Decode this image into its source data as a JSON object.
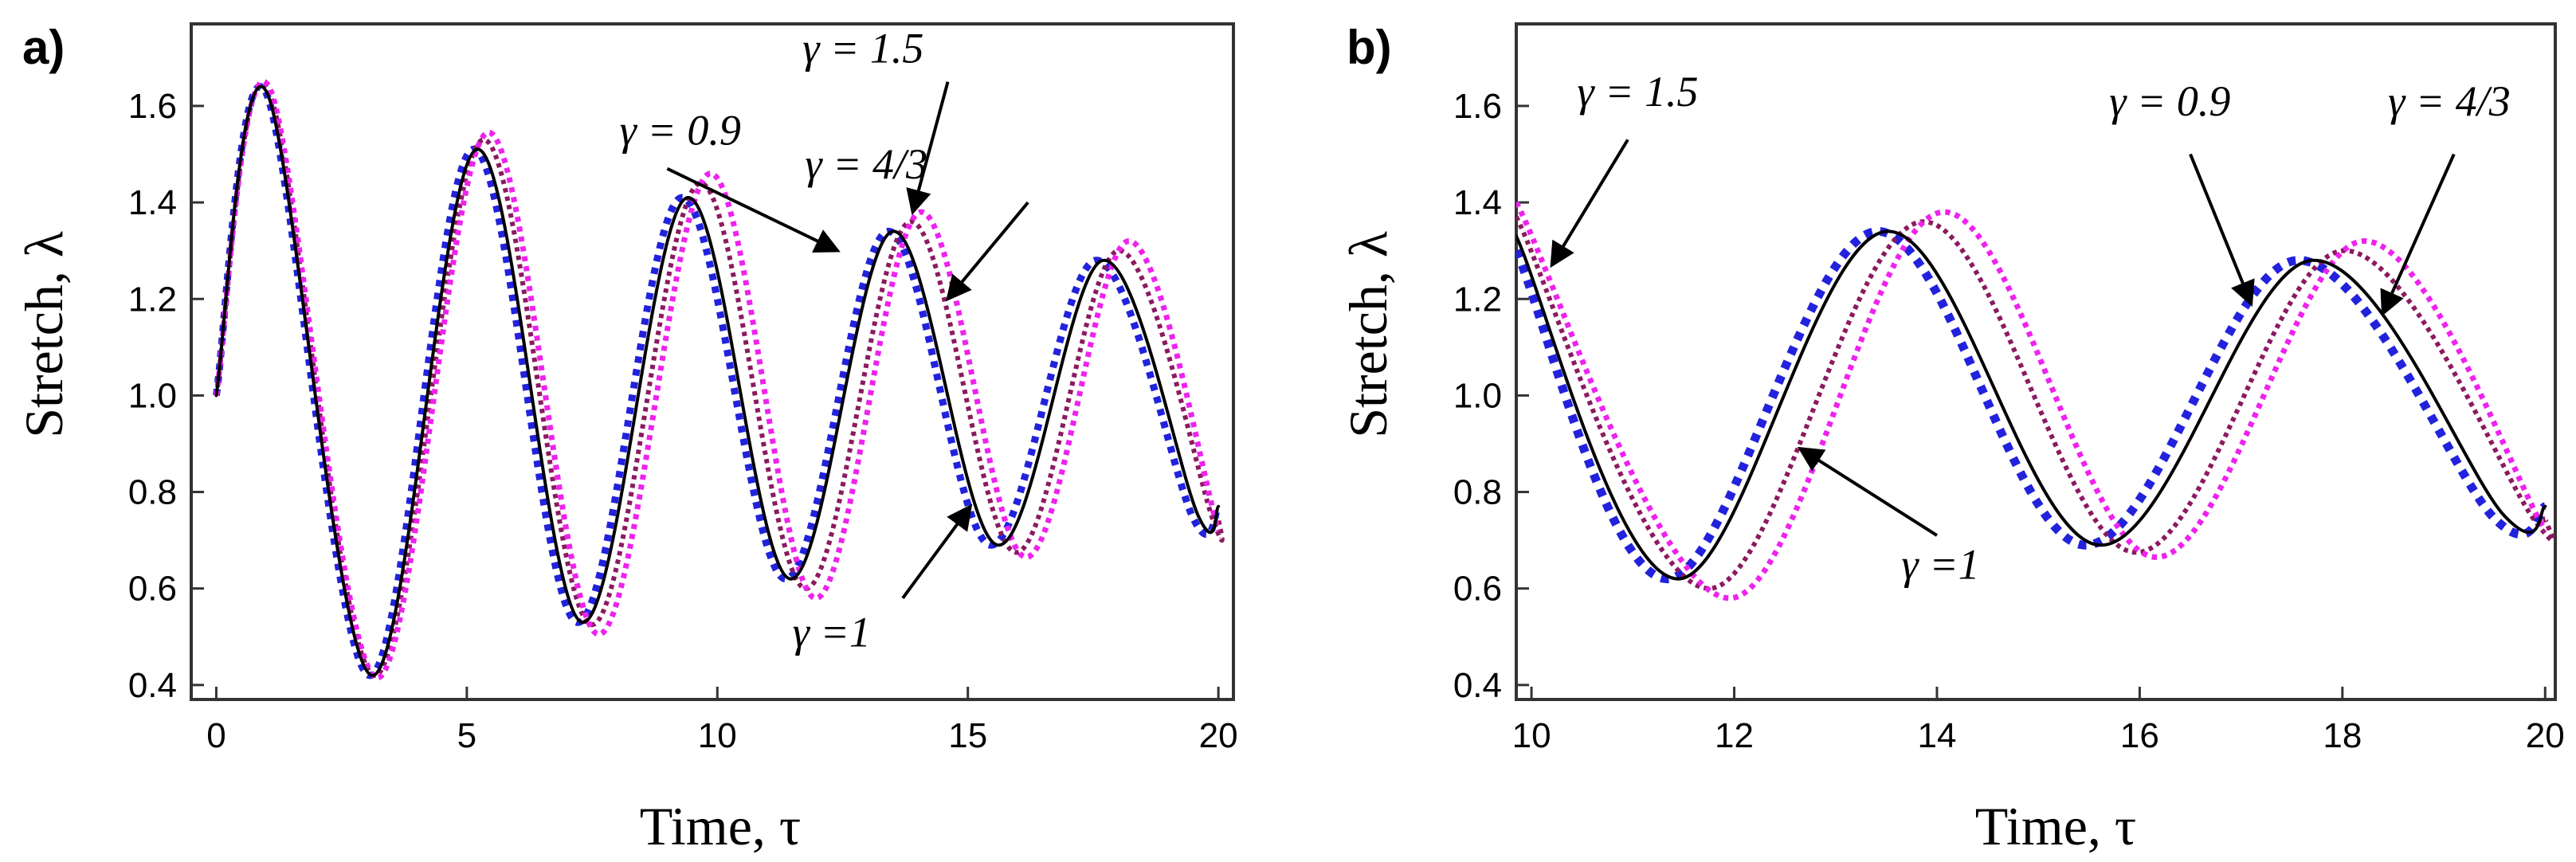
{
  "chart_data": [
    {
      "type": "line",
      "panel_label": "a)",
      "title": "",
      "xlabel": "Time,  τ",
      "ylabel": "Stretch,  λ",
      "xlim": [
        -0.5,
        20.3
      ],
      "ylim": [
        0.37,
        1.77
      ],
      "xticks": [
        0,
        5,
        10,
        15,
        20
      ],
      "yticks": [
        0.4,
        0.6,
        0.8,
        1.0,
        1.2,
        1.4,
        1.6
      ],
      "xtick_labels": [
        "0",
        "5",
        "10",
        "15",
        "20"
      ],
      "ytick_labels": [
        "0.4",
        "0.6",
        "0.8",
        "1.0",
        "1.2",
        "1.4",
        "1.6"
      ],
      "series": [
        {
          "name": "γ = 1",
          "color": "#000000",
          "style": "solid",
          "width": 4,
          "x": [
            0,
            1.0,
            3.1,
            5.2,
            7.3,
            9.4,
            11.45,
            13.5,
            15.6,
            17.7,
            19.6,
            20.0
          ],
          "y": [
            1.0,
            1.63,
            0.42,
            1.51,
            0.53,
            1.41,
            0.62,
            1.34,
            0.69,
            1.28,
            0.75,
            0.77
          ]
        },
        {
          "name": "γ = 0.9",
          "color": "#2222dd",
          "style": "dotted",
          "width": 9,
          "x": [
            0,
            0.98,
            3.05,
            5.12,
            7.2,
            9.28,
            11.35,
            13.4,
            15.45,
            17.55,
            19.5,
            20.0
          ],
          "y": [
            1.0,
            1.63,
            0.42,
            1.51,
            0.53,
            1.41,
            0.62,
            1.34,
            0.69,
            1.28,
            0.745,
            0.77
          ]
        },
        {
          "name": "γ = 4/3",
          "color": "#8b1a60",
          "style": "dotted",
          "width": 6,
          "x": [
            0,
            1.03,
            3.15,
            5.32,
            7.48,
            9.65,
            11.75,
            13.85,
            15.95,
            18.0,
            19.9,
            20.0
          ],
          "y": [
            1.0,
            1.635,
            0.42,
            1.53,
            0.525,
            1.44,
            0.6,
            1.36,
            0.675,
            1.3,
            0.74,
            0.745
          ]
        },
        {
          "name": "γ = 1.5",
          "color": "#ee22ee",
          "style": "dotted",
          "width": 7,
          "x": [
            0,
            1.05,
            3.2,
            5.42,
            7.62,
            9.85,
            11.95,
            14.05,
            16.15,
            18.2,
            20.0
          ],
          "y": [
            1.0,
            1.64,
            0.415,
            1.545,
            0.505,
            1.46,
            0.58,
            1.38,
            0.665,
            1.32,
            0.72
          ]
        }
      ],
      "annotations": [
        {
          "text": "γ = 0.9",
          "x": 8.05,
          "y": 1.52,
          "anchor_x": 9.42,
          "arrow_from": [
            9.0,
            1.47
          ],
          "arrow_to": [
            12.4,
            1.3
          ]
        },
        {
          "text": "γ = 1.5",
          "x": 11.7,
          "y": 1.69,
          "anchor_x": 12.4,
          "arrow_from": [
            14.6,
            1.65
          ],
          "arrow_to": [
            13.9,
            1.38
          ]
        },
        {
          "text": "γ = 4/3",
          "x": 11.75,
          "y": 1.45,
          "anchor_x": 13.05,
          "arrow_from": [
            16.2,
            1.4
          ],
          "arrow_to": [
            14.6,
            1.2
          ]
        },
        {
          "text": "γ =1",
          "x": 11.5,
          "y": 0.48,
          "anchor_x": 12.1,
          "arrow_from": [
            13.7,
            0.58
          ],
          "arrow_to": [
            15.05,
            0.77
          ]
        }
      ]
    },
    {
      "type": "line",
      "panel_label": "b)",
      "title": "",
      "xlabel": "Time,  τ",
      "ylabel": "Stretch,  λ",
      "xlim": [
        9.85,
        20.1
      ],
      "ylim": [
        0.37,
        1.77
      ],
      "xticks": [
        10,
        12,
        14,
        16,
        18,
        20
      ],
      "yticks": [
        0.4,
        0.6,
        0.8,
        1.0,
        1.2,
        1.4,
        1.6
      ],
      "xtick_labels": [
        "10",
        "12",
        "14",
        "16",
        "18",
        "20"
      ],
      "ytick_labels": [
        "0.4",
        "0.6",
        "0.8",
        "1.0",
        "1.2",
        "1.4",
        "1.6"
      ],
      "series": [
        {
          "name": "γ = 1",
          "color": "#000000",
          "style": "solid",
          "width": 4,
          "x": [
            9.85,
            11.45,
            13.5,
            15.6,
            17.7,
            19.6,
            20.0
          ],
          "y": [
            1.33,
            0.62,
            1.34,
            0.69,
            1.28,
            0.75,
            0.77
          ]
        },
        {
          "name": "γ = 0.9",
          "color": "#2222dd",
          "style": "dotted",
          "width": 11,
          "x": [
            9.85,
            11.35,
            13.4,
            15.45,
            17.55,
            19.5,
            20.0
          ],
          "y": [
            1.3,
            0.62,
            1.34,
            0.69,
            1.28,
            0.745,
            0.77
          ]
        },
        {
          "name": "γ = 4/3",
          "color": "#8b1a60",
          "style": "dotted",
          "width": 6,
          "x": [
            9.85,
            11.75,
            13.85,
            15.95,
            18.0,
            19.9,
            20.0
          ],
          "y": [
            1.37,
            0.6,
            1.36,
            0.675,
            1.3,
            0.74,
            0.745
          ]
        },
        {
          "name": "γ = 1.5",
          "color": "#ee22ee",
          "style": "dotted",
          "width": 7,
          "x": [
            9.85,
            11.95,
            14.05,
            16.15,
            18.2,
            20.0
          ],
          "y": [
            1.4,
            0.58,
            1.38,
            0.665,
            1.32,
            0.72
          ]
        }
      ],
      "annotations": [
        {
          "text": "γ = 1.5",
          "x": 10.45,
          "y": 1.6,
          "anchor_x": 10.98,
          "arrow_from": [
            10.95,
            1.53
          ],
          "arrow_to": [
            10.2,
            1.27
          ]
        },
        {
          "text": "γ = 0.9",
          "x": 15.7,
          "y": 1.58,
          "anchor_x": 16.3,
          "arrow_from": [
            16.5,
            1.5
          ],
          "arrow_to": [
            17.1,
            1.19
          ]
        },
        {
          "text": "γ = 4/3",
          "x": 18.45,
          "y": 1.58,
          "anchor_x": 19.05,
          "arrow_from": [
            19.1,
            1.5
          ],
          "arrow_to": [
            18.4,
            1.17
          ]
        },
        {
          "text": "γ =1",
          "x": 13.65,
          "y": 0.62,
          "anchor_x": 14.15,
          "arrow_from": [
            14.0,
            0.71
          ],
          "arrow_to": [
            12.65,
            0.89
          ]
        }
      ]
    }
  ]
}
